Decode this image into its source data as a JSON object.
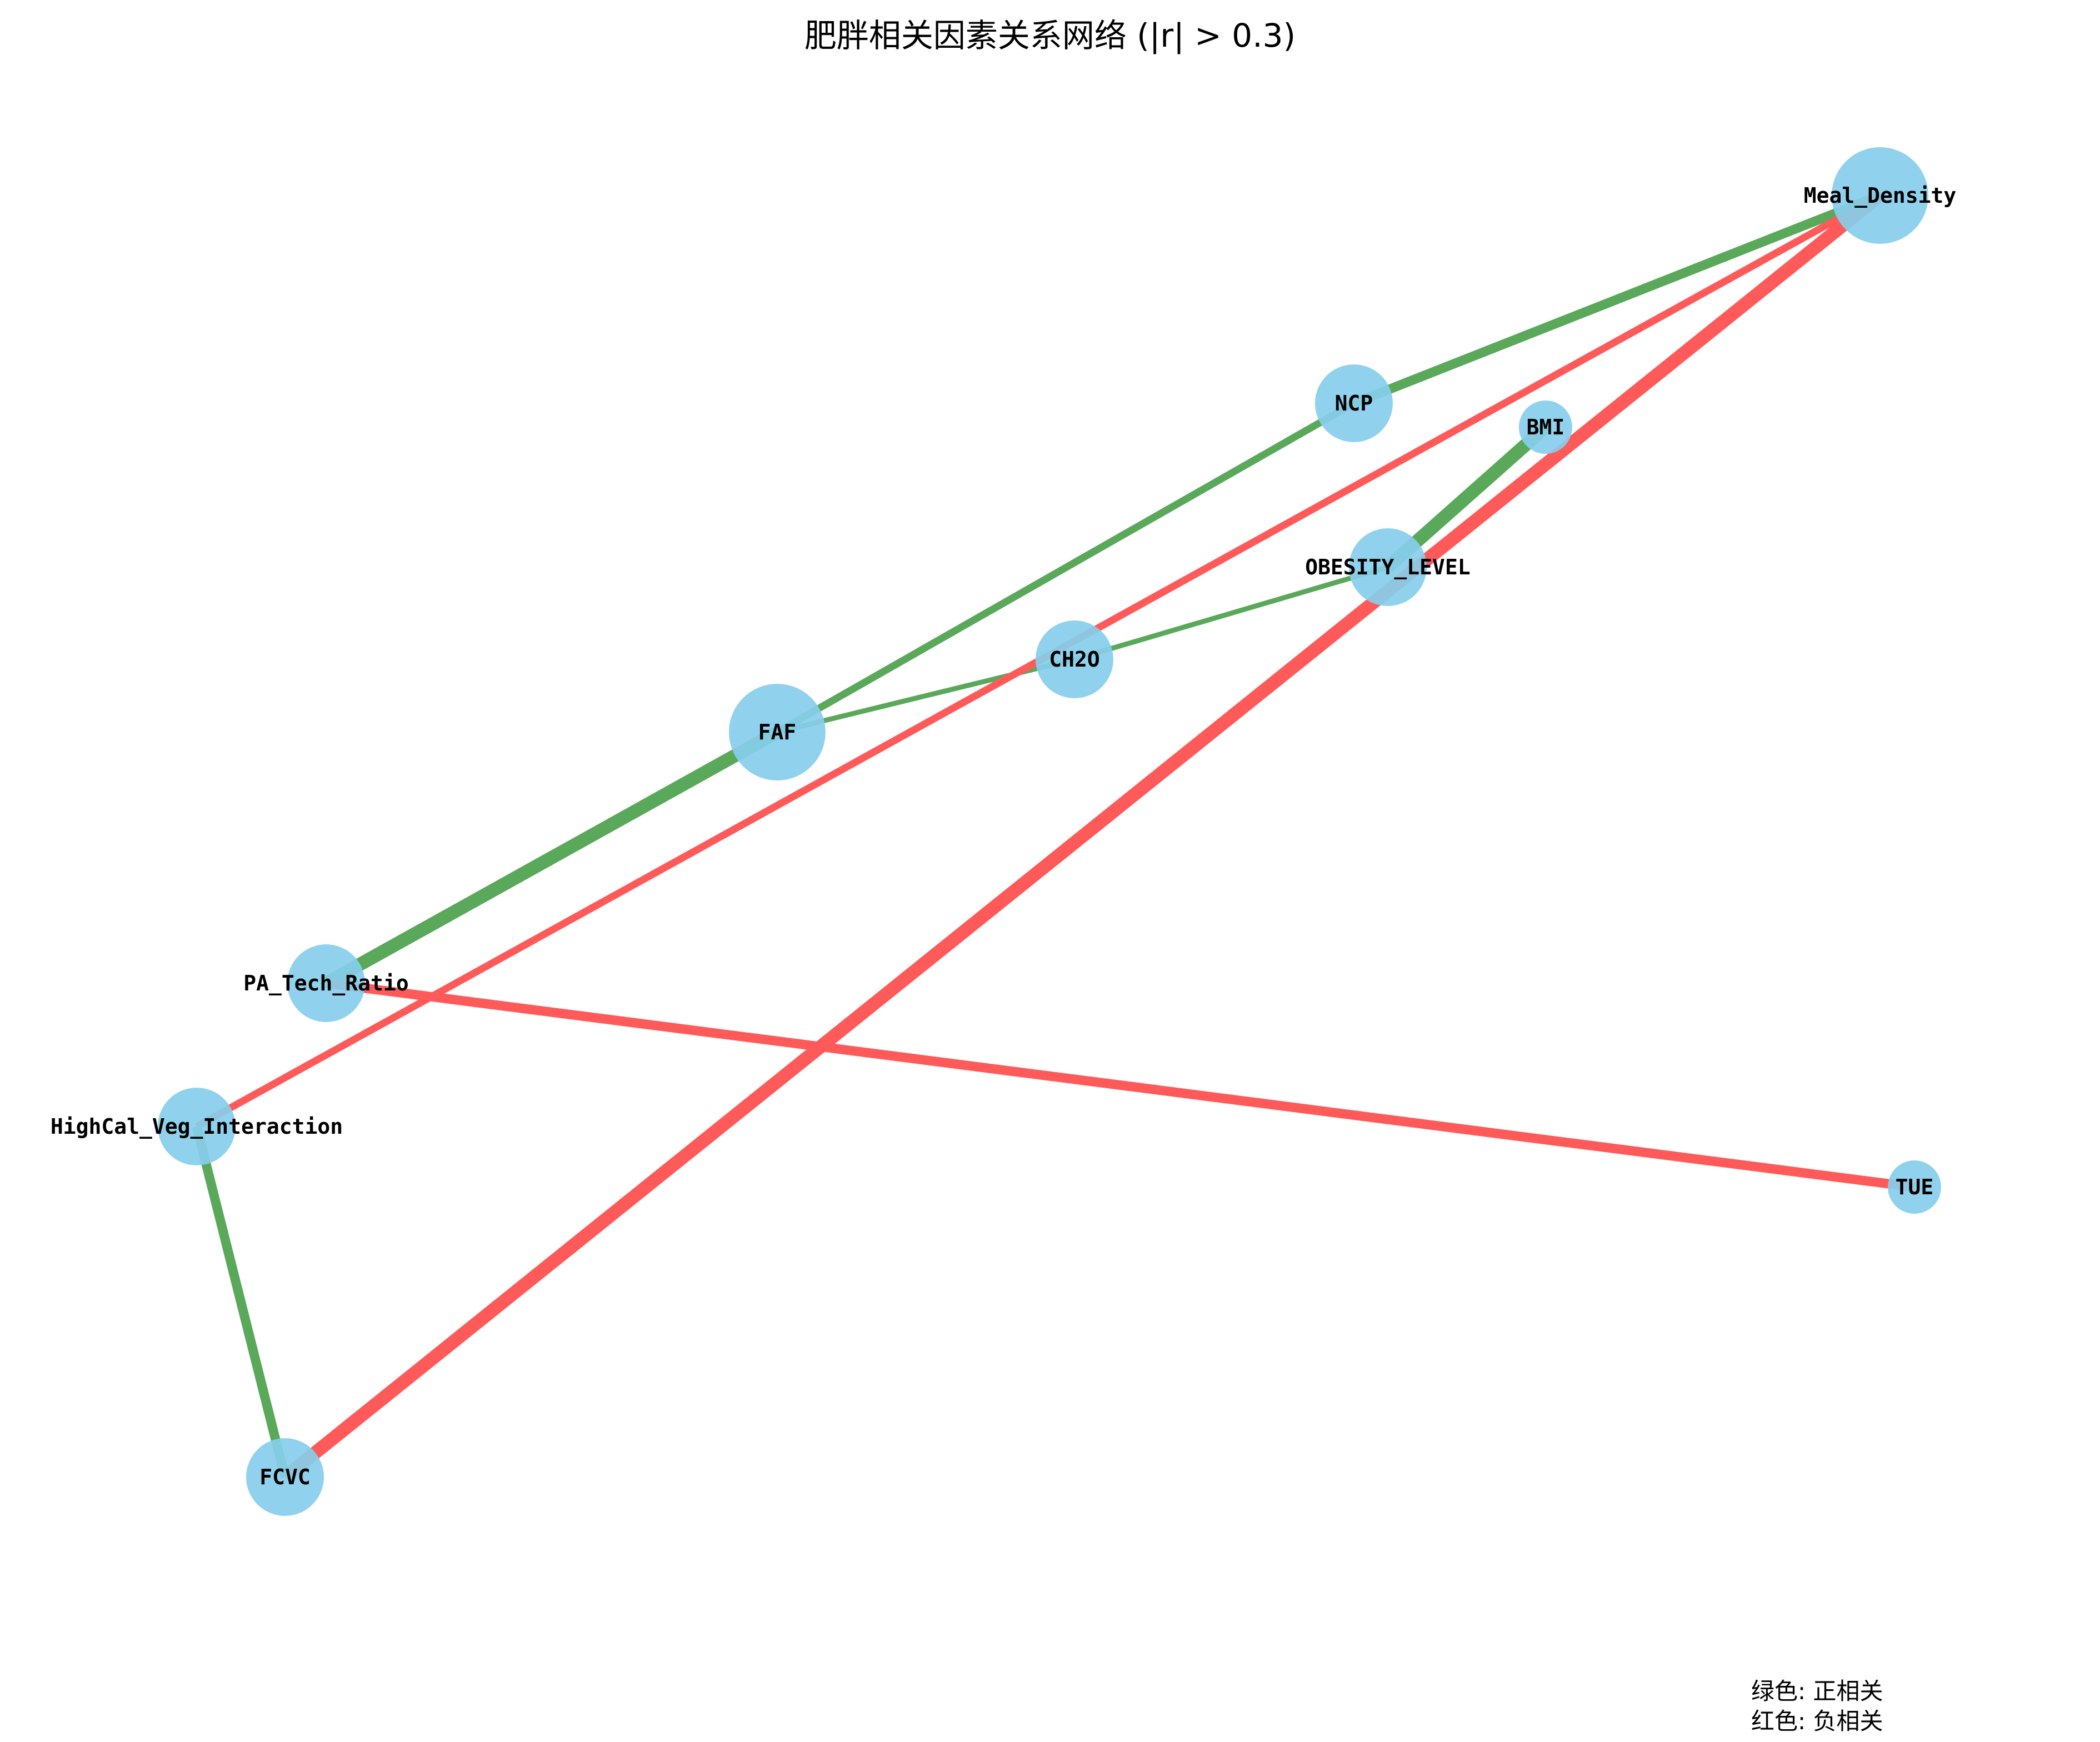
{
  "title": "肥胖相关因素关系网络 (|r| > 0.3)",
  "legend": {
    "positive": "绿色: 正相关",
    "negative": "红色: 负相关"
  },
  "colors": {
    "node": "#87ceeb",
    "positive": "#5aa85a",
    "negative": "#ff5a5a"
  },
  "nodes": [
    {
      "id": "Meal_Density",
      "label": "Meal_Density",
      "size": "large"
    },
    {
      "id": "NCP",
      "label": "NCP",
      "size": "medium"
    },
    {
      "id": "BMI",
      "label": "BMI",
      "size": "small"
    },
    {
      "id": "OBESITY_LEVEL",
      "label": "OBESITY_LEVEL",
      "size": "medium"
    },
    {
      "id": "CH2O",
      "label": "CH2O",
      "size": "medium"
    },
    {
      "id": "FAF",
      "label": "FAF",
      "size": "large"
    },
    {
      "id": "PA_Tech_Ratio",
      "label": "PA_Tech_Ratio",
      "size": "medium"
    },
    {
      "id": "HighCal_Veg_Interaction",
      "label": "HighCal_Veg_Interaction",
      "size": "medium"
    },
    {
      "id": "FCVC",
      "label": "FCVC",
      "size": "medium"
    },
    {
      "id": "TUE",
      "label": "TUE",
      "size": "small"
    }
  ],
  "edges": [
    {
      "source": "Meal_Density",
      "target": "NCP",
      "sign": "positive",
      "strength": "strong"
    },
    {
      "source": "NCP",
      "target": "FAF",
      "sign": "positive",
      "strength": "medium"
    },
    {
      "source": "FAF",
      "target": "PA_Tech_Ratio",
      "sign": "positive",
      "strength": "very strong"
    },
    {
      "source": "BMI",
      "target": "OBESITY_LEVEL",
      "sign": "positive",
      "strength": "very strong"
    },
    {
      "source": "OBESITY_LEVEL",
      "target": "CH2O",
      "sign": "positive",
      "strength": "weak"
    },
    {
      "source": "CH2O",
      "target": "FAF",
      "sign": "positive",
      "strength": "weak"
    },
    {
      "source": "Meal_Density",
      "target": "HighCal_Veg_Interaction",
      "sign": "negative",
      "strength": "medium"
    },
    {
      "source": "Meal_Density",
      "target": "FCVC",
      "sign": "negative",
      "strength": "very strong"
    },
    {
      "source": "PA_Tech_Ratio",
      "target": "TUE",
      "sign": "negative",
      "strength": "strong"
    },
    {
      "source": "HighCal_Veg_Interaction",
      "target": "FCVC",
      "sign": "positive",
      "strength": "strong"
    }
  ]
}
